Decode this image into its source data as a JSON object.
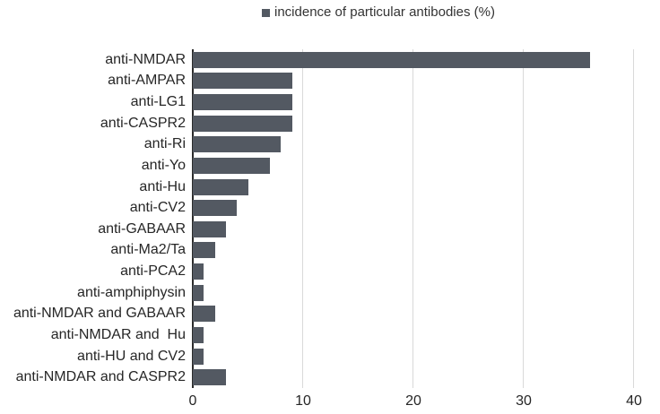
{
  "colors": {
    "bar": "#535962",
    "gridline": "#d9d9d9",
    "axis_line": "#2b2b2b",
    "text": "#262626",
    "background": "#ffffff"
  },
  "legend": {
    "swatch_icon": "legend-square-swatch",
    "label": "incidence of particular antibodies (%)"
  },
  "chart_data": {
    "type": "bar",
    "orientation": "horizontal",
    "title": "incidence of particular antibodies (%)",
    "categories": [
      "anti-NMDAR",
      "anti-AMPAR",
      "anti-LG1",
      "anti-CASPR2",
      "anti-Ri",
      "anti-Yo",
      "anti-Hu",
      "anti-CV2",
      "anti-GABAAR",
      "anti-Ma2/Ta",
      "anti-PCA2",
      "anti-amphiphysin",
      "anti-NMDAR and GABAAR",
      "anti-NMDAR and  Hu",
      "anti-HU and CV2",
      "anti-NMDAR and CASPR2"
    ],
    "values": [
      36,
      9,
      9,
      9,
      8,
      7,
      5,
      4,
      3,
      2,
      1,
      1,
      2,
      1,
      1,
      3
    ],
    "xlabel": "",
    "ylabel": "",
    "xlim": [
      0,
      40
    ],
    "x_ticks": [
      0,
      10,
      20,
      30,
      40
    ],
    "grid": "vertical-only",
    "legend_position": "top-center"
  }
}
